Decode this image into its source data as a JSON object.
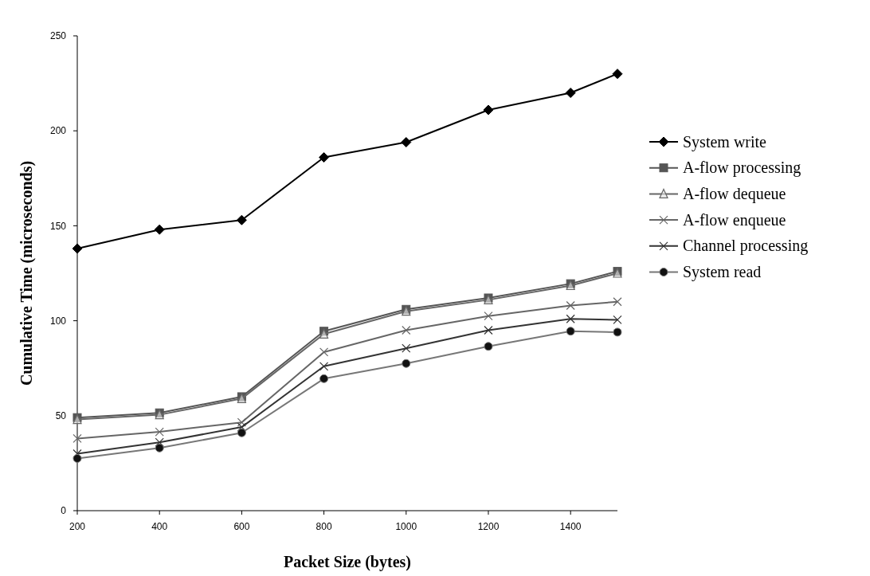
{
  "chart_data": {
    "type": "line",
    "xlabel": "Packet Size (bytes)",
    "ylabel": "Cumulative Time (microseconds)",
    "x": [
      200,
      400,
      600,
      800,
      1000,
      1200,
      1400,
      1514
    ],
    "xlim": [
      200,
      1514
    ],
    "xticks": [
      200,
      400,
      600,
      800,
      1000,
      1200,
      1400
    ],
    "ylim": [
      0,
      250
    ],
    "yticks": [
      0,
      50,
      100,
      150,
      200,
      250
    ],
    "grid": false,
    "legend": "right",
    "series": [
      {
        "name": "System write",
        "color": "#000000",
        "marker": "diamond",
        "values": [
          138,
          148,
          153,
          186,
          194,
          211,
          220,
          230
        ]
      },
      {
        "name": "A-flow processing",
        "color": "#555555",
        "marker": "square",
        "values": [
          49,
          51.5,
          60,
          94.5,
          106,
          112,
          119.5,
          126
        ]
      },
      {
        "name": "A-flow dequeue",
        "color": "#666666",
        "marker": "triangle",
        "values": [
          48,
          50.5,
          59,
          93,
          105,
          111,
          118.5,
          125
        ]
      },
      {
        "name": "A-flow enqueue",
        "color": "#666666",
        "marker": "cross",
        "values": [
          38,
          41.5,
          46.5,
          83.5,
          95,
          102.5,
          108,
          110
        ]
      },
      {
        "name": "Channel processing",
        "color": "#333333",
        "marker": "cross",
        "values": [
          30,
          36,
          44,
          76,
          85.5,
          95,
          101,
          100.5
        ]
      },
      {
        "name": "System read",
        "color": "#777777",
        "marker": "circle",
        "values": [
          27.5,
          33,
          41,
          69.5,
          77.5,
          86.5,
          94.5,
          94
        ]
      }
    ]
  }
}
